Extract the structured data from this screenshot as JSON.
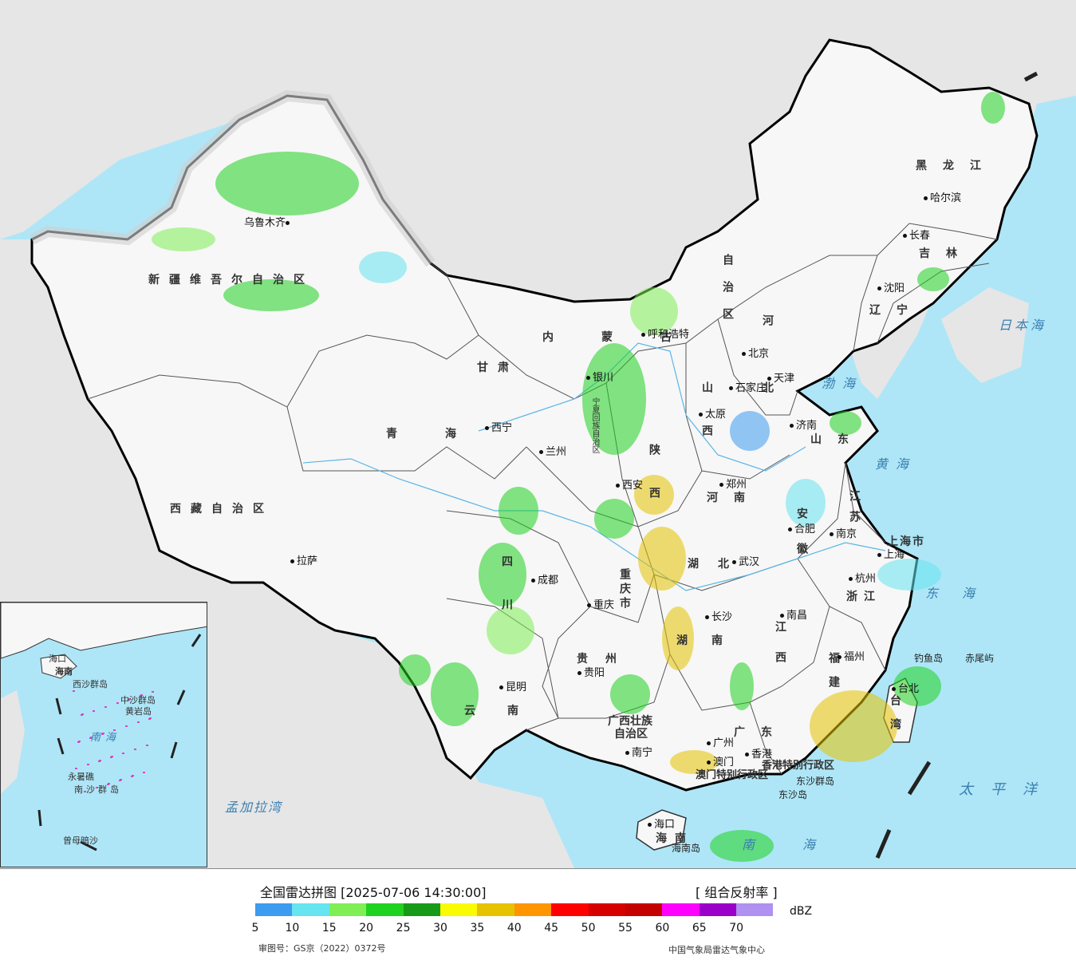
{
  "map": {
    "provinces": [
      {
        "id": "xinjiang",
        "label": "新疆维吾尔自治区"
      },
      {
        "id": "xizang",
        "label": "西藏自治区"
      },
      {
        "id": "qinghai",
        "label": "青海"
      },
      {
        "id": "gansu",
        "label": "甘肃"
      },
      {
        "id": "neimenggu",
        "label": "内蒙古"
      },
      {
        "id": "neimenggu2",
        "label": "自治区"
      },
      {
        "id": "heilongjiang",
        "label": "黑龙江"
      },
      {
        "id": "jilin",
        "label": "吉林"
      },
      {
        "id": "liaoning",
        "label": "辽宁"
      },
      {
        "id": "hebei",
        "label": "河北"
      },
      {
        "id": "shanxi",
        "label": "山西"
      },
      {
        "id": "shaanxi",
        "label": "陕西"
      },
      {
        "id": "ningxia",
        "label": "宁夏回族自治区"
      },
      {
        "id": "shandong",
        "label": "山东"
      },
      {
        "id": "henan",
        "label": "河南"
      },
      {
        "id": "jiangsu",
        "label": "江苏"
      },
      {
        "id": "anhui",
        "label": "安徽"
      },
      {
        "id": "hubei",
        "label": "湖北"
      },
      {
        "id": "sichuan",
        "label": "四川"
      },
      {
        "id": "chongqing",
        "label": "重庆市"
      },
      {
        "id": "zhejiang",
        "label": "浙江"
      },
      {
        "id": "shanghai",
        "label": "上海市"
      },
      {
        "id": "hunan",
        "label": "湖南"
      },
      {
        "id": "jiangxi",
        "label": "江西"
      },
      {
        "id": "fujian",
        "label": "福建"
      },
      {
        "id": "guizhou",
        "label": "贵州"
      },
      {
        "id": "yunnan",
        "label": "云南"
      },
      {
        "id": "guangxi",
        "label": "广西壮族"
      },
      {
        "id": "guangxi2",
        "label": "自治区"
      },
      {
        "id": "guangdong",
        "label": "广东"
      },
      {
        "id": "taiwan",
        "label": "台湾"
      },
      {
        "id": "hainan",
        "label": "海南"
      },
      {
        "id": "hk",
        "label": "香港特别行政区"
      },
      {
        "id": "macau",
        "label": "澳门特别行政区"
      }
    ],
    "cities": [
      {
        "id": "urumqi",
        "label": "乌鲁木齐"
      },
      {
        "id": "lhasa",
        "label": "拉萨"
      },
      {
        "id": "xining",
        "label": "西宁"
      },
      {
        "id": "lanzhou",
        "label": "兰州"
      },
      {
        "id": "yinchuan",
        "label": "银川"
      },
      {
        "id": "hohhot",
        "label": "呼和浩特"
      },
      {
        "id": "harbin",
        "label": "哈尔滨"
      },
      {
        "id": "changchun",
        "label": "长春"
      },
      {
        "id": "shenyang",
        "label": "沈阳"
      },
      {
        "id": "beijing",
        "label": "北京"
      },
      {
        "id": "tianjin",
        "label": "天津"
      },
      {
        "id": "shijiazhuang",
        "label": "石家庄"
      },
      {
        "id": "taiyuan",
        "label": "太原"
      },
      {
        "id": "jinan",
        "label": "济南"
      },
      {
        "id": "xian",
        "label": "西安"
      },
      {
        "id": "zhengzhou",
        "label": "郑州"
      },
      {
        "id": "hefei",
        "label": "合肥"
      },
      {
        "id": "nanjing",
        "label": "南京"
      },
      {
        "id": "shanghai_c",
        "label": "上海"
      },
      {
        "id": "hangzhou",
        "label": "杭州"
      },
      {
        "id": "wuhan",
        "label": "武汉"
      },
      {
        "id": "chengdu",
        "label": "成都"
      },
      {
        "id": "chongqing_c",
        "label": "重庆"
      },
      {
        "id": "changsha",
        "label": "长沙"
      },
      {
        "id": "nanchang",
        "label": "南昌"
      },
      {
        "id": "fuzhou",
        "label": "福州"
      },
      {
        "id": "guiyang",
        "label": "贵阳"
      },
      {
        "id": "kunming",
        "label": "昆明"
      },
      {
        "id": "nanning",
        "label": "南宁"
      },
      {
        "id": "guangzhou",
        "label": "广州"
      },
      {
        "id": "hongkong",
        "label": "香港"
      },
      {
        "id": "macao",
        "label": "澳门"
      },
      {
        "id": "haikou",
        "label": "海口"
      },
      {
        "id": "taipei",
        "label": "台北"
      }
    ],
    "seas": [
      {
        "id": "bohai",
        "label": "渤海"
      },
      {
        "id": "huanghai",
        "label": "黄海"
      },
      {
        "id": "donghai",
        "label": "东海"
      },
      {
        "id": "nanhai",
        "label": "南海"
      },
      {
        "id": "japansea",
        "label": "日本海"
      },
      {
        "id": "pacific",
        "label": "太平洋"
      },
      {
        "id": "bengal",
        "label": "孟加拉湾"
      }
    ],
    "islands": [
      {
        "id": "diaoyu",
        "label": "钓鱼岛"
      },
      {
        "id": "chiwei",
        "label": "赤尾屿"
      },
      {
        "id": "dongsha_qd",
        "label": "东沙群岛"
      },
      {
        "id": "dongsha",
        "label": "东沙岛"
      },
      {
        "id": "hainandao",
        "label": "海南岛"
      }
    ],
    "inset": {
      "labels": [
        {
          "id": "i_hainan",
          "label": "海南"
        },
        {
          "id": "i_nanhai",
          "label": "南海"
        },
        {
          "id": "i_zhongsha",
          "label": "中沙群岛"
        },
        {
          "id": "i_huangyan",
          "label": "黄岩岛"
        },
        {
          "id": "i_yongshu",
          "label": "永暑礁"
        },
        {
          "id": "i_nansha",
          "label": "南沙群岛"
        },
        {
          "id": "i_zengmu",
          "label": "曾母暗沙"
        },
        {
          "id": "i_xisha",
          "label": "西沙群岛"
        },
        {
          "id": "i_haikou",
          "label": "海口"
        }
      ]
    }
  },
  "legend": {
    "title": "全国雷达拼图 [2025-07-06 14:30:00]",
    "product": "[ 组合反射率 ]",
    "unit": "dBZ",
    "colors": [
      "#3d9bf0",
      "#66e4f0",
      "#7fef55",
      "#1fd21f",
      "#179a17",
      "#fafa00",
      "#e6c300",
      "#ff9500",
      "#ff0000",
      "#d60000",
      "#c40000",
      "#ff00ff",
      "#9a00c9",
      "#ae91f0"
    ],
    "ticks": [
      "5",
      "10",
      "15",
      "20",
      "25",
      "30",
      "35",
      "40",
      "45",
      "50",
      "55",
      "60",
      "65",
      "70"
    ],
    "approval": "审图号：GS京（2022）0372号",
    "agency": "中国气象局雷达气象中心"
  }
}
